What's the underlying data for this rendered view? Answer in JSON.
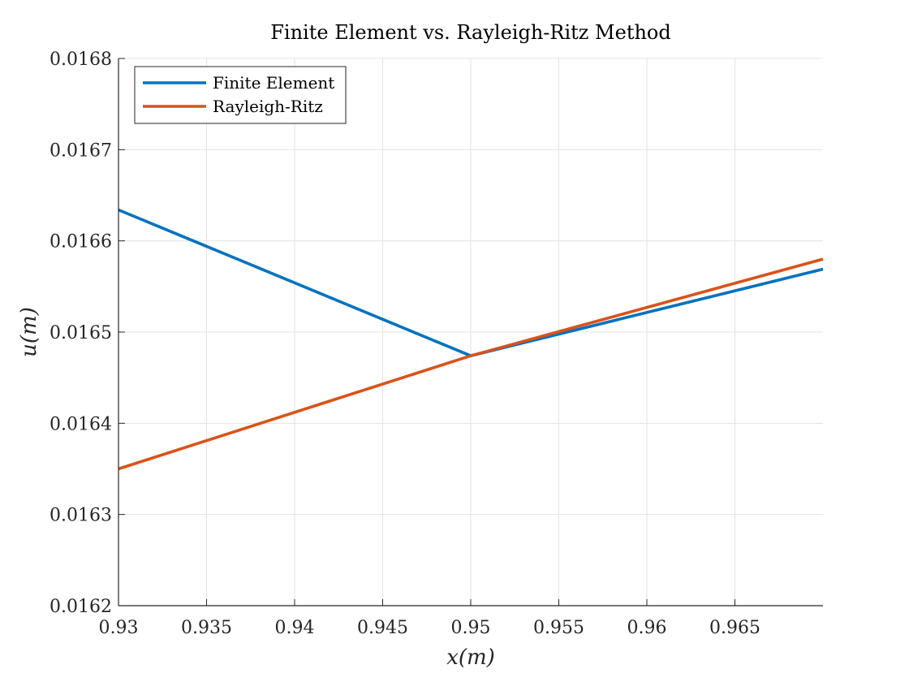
{
  "chart_data": {
    "type": "line",
    "title": "Finite Element vs. Rayleigh-Ritz Method",
    "xlabel": "x(m)",
    "ylabel": "u(m)",
    "xlim": [
      0.93,
      0.97
    ],
    "ylim": [
      0.0162,
      0.0168
    ],
    "xticks": [
      0.93,
      0.935,
      0.94,
      0.945,
      0.95,
      0.955,
      0.96,
      0.965
    ],
    "xtick_labels": [
      "0.93",
      "0.935",
      "0.94",
      "0.945",
      "0.95",
      "0.955",
      "0.96",
      "0.965"
    ],
    "yticks": [
      0.0162,
      0.0163,
      0.0164,
      0.0165,
      0.0166,
      0.0167,
      0.0168
    ],
    "ytick_labels": [
      "0.0162",
      "0.0163",
      "0.0164",
      "0.0165",
      "0.0166",
      "0.0167",
      "0.0168"
    ],
    "grid": true,
    "legend_position": "top-left",
    "series": [
      {
        "name": "Finite Element",
        "color": "#0072BD",
        "x": [
          0.93,
          0.95,
          0.97
        ],
        "y": [
          0.016634,
          0.016474,
          0.016569
        ]
      },
      {
        "name": "Rayleigh-Ritz",
        "color": "#D95319",
        "x": [
          0.93,
          0.95,
          0.97
        ],
        "y": [
          0.01635,
          0.016474,
          0.01658
        ]
      }
    ]
  }
}
